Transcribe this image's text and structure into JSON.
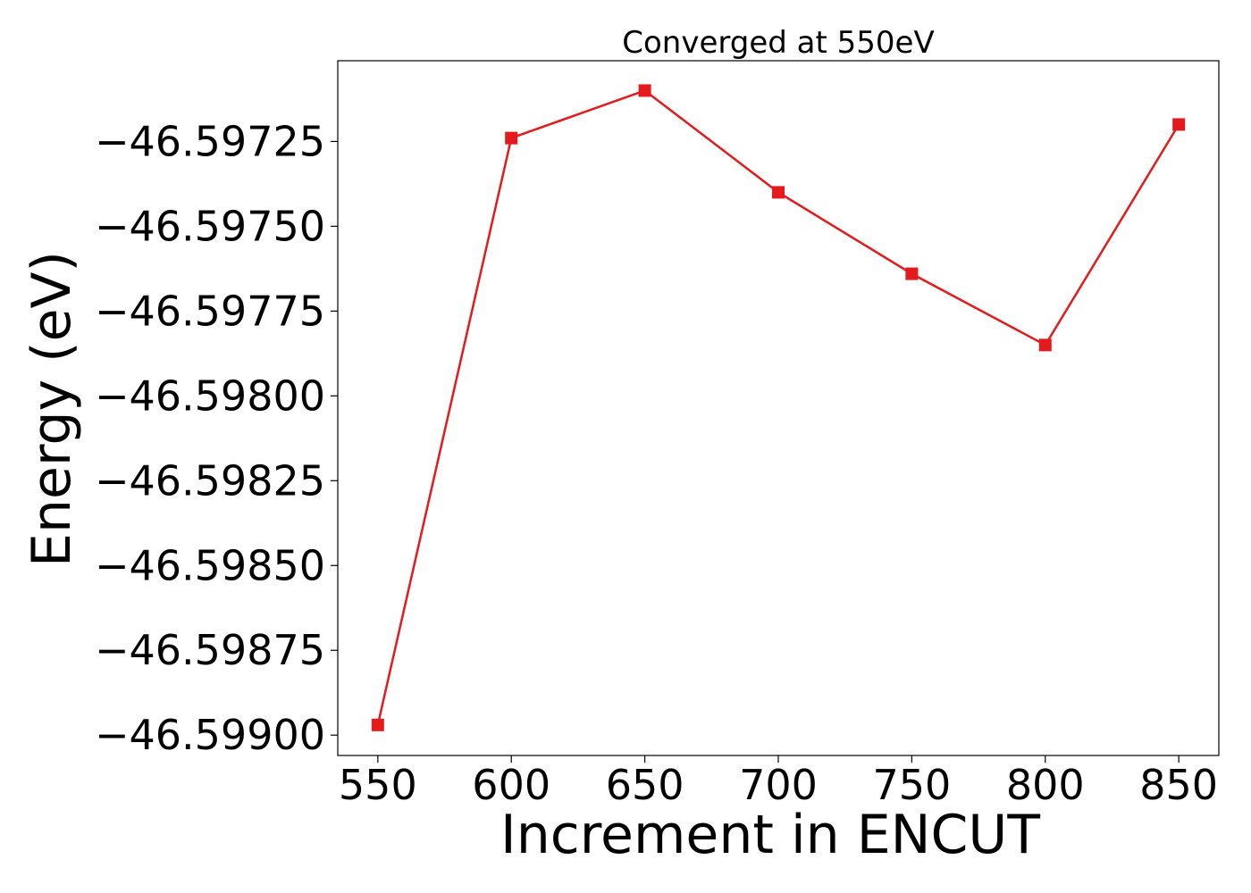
{
  "chart_data": {
    "type": "line",
    "title": "Converged at 550eV",
    "xlabel": "Increment in ENCUT",
    "ylabel": "Energy (eV)",
    "x": [
      550,
      600,
      650,
      700,
      750,
      800,
      850
    ],
    "series": [
      {
        "values": [
          -46.59897,
          -46.59724,
          -46.5971,
          -46.5974,
          -46.59764,
          -46.59785,
          -46.5972
        ],
        "color": "#e41a1c",
        "marker": "square"
      }
    ],
    "xticks": [
      550,
      600,
      650,
      700,
      750,
      800,
      850
    ],
    "xtick_labels": [
      "550",
      "600",
      "650",
      "700",
      "750",
      "800",
      "850"
    ],
    "yticks": [
      -46.59725,
      -46.5975,
      -46.59775,
      -46.598,
      -46.59825,
      -46.5985,
      -46.59875,
      -46.599
    ],
    "ytick_labels": [
      "−46.59725",
      "−46.59750",
      "−46.59775",
      "−46.59800",
      "−46.59825",
      "−46.59850",
      "−46.59875",
      "−46.59900"
    ],
    "xlim": [
      535,
      865
    ],
    "ylim": [
      -46.59906,
      -46.597012
    ],
    "grid": false,
    "legend": false
  }
}
